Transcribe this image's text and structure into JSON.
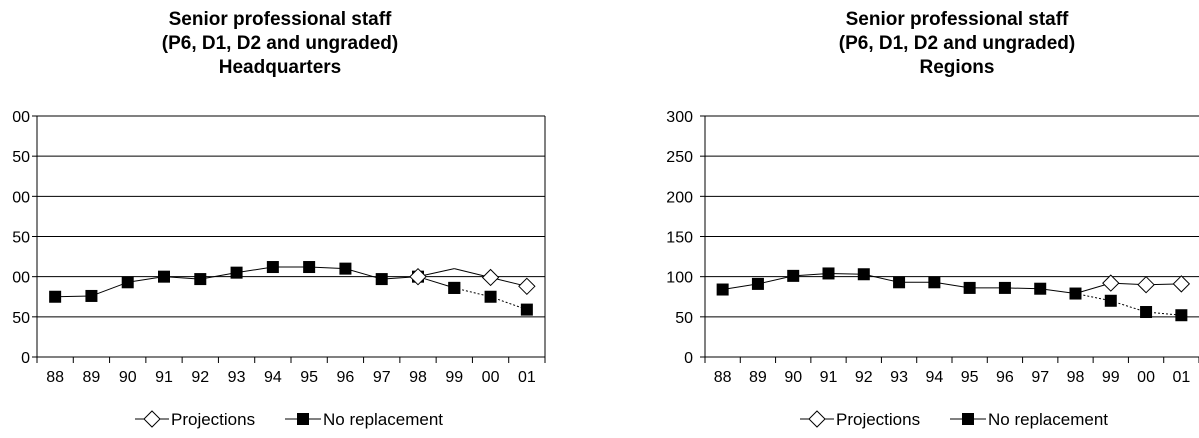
{
  "chart_data": [
    {
      "type": "line",
      "title": [
        "Senior professional staff",
        "(P6, D1, D2 and ungraded)",
        "Headquarters"
      ],
      "xlabel": "",
      "ylabel": "",
      "categories": [
        "88",
        "89",
        "90",
        "91",
        "92",
        "93",
        "94",
        "95",
        "96",
        "97",
        "98",
        "99",
        "00",
        "01"
      ],
      "ytick_labels": [
        "0",
        "50",
        "00",
        "50",
        "00",
        "50",
        "00"
      ],
      "ylim": [
        0,
        300
      ],
      "grid": true,
      "legend_position": "bottom",
      "series": [
        {
          "name": "Projections",
          "marker": "open-diamond",
          "values": [
            null,
            null,
            null,
            null,
            null,
            null,
            null,
            null,
            null,
            null,
            100,
            110,
            99,
            88
          ]
        },
        {
          "name": "No replacement",
          "marker": "filled-square",
          "values": [
            75,
            76,
            93,
            100,
            97,
            105,
            112,
            112,
            110,
            97,
            100,
            86,
            75,
            59
          ],
          "dotted_from_index": 11
        }
      ]
    },
    {
      "type": "line",
      "title": [
        "Senior professional staff",
        "(P6, D1, D2 and ungraded)",
        "Regions"
      ],
      "xlabel": "",
      "ylabel": "",
      "categories": [
        "88",
        "89",
        "90",
        "91",
        "92",
        "93",
        "94",
        "95",
        "96",
        "97",
        "98",
        "99",
        "00",
        "01"
      ],
      "ytick_labels": [
        "0",
        "50",
        "100",
        "150",
        "200",
        "250",
        "300"
      ],
      "ylim": [
        0,
        300
      ],
      "grid": true,
      "legend_position": "bottom",
      "series": [
        {
          "name": "Projections",
          "marker": "open-diamond",
          "values": [
            null,
            null,
            null,
            null,
            null,
            null,
            null,
            null,
            null,
            null,
            79,
            92,
            90,
            91
          ]
        },
        {
          "name": "No replacement",
          "marker": "filled-square",
          "values": [
            84,
            91,
            101,
            104,
            103,
            93,
            93,
            86,
            86,
            85,
            79,
            70,
            56,
            52
          ],
          "dotted_from_index": 10
        }
      ]
    }
  ]
}
